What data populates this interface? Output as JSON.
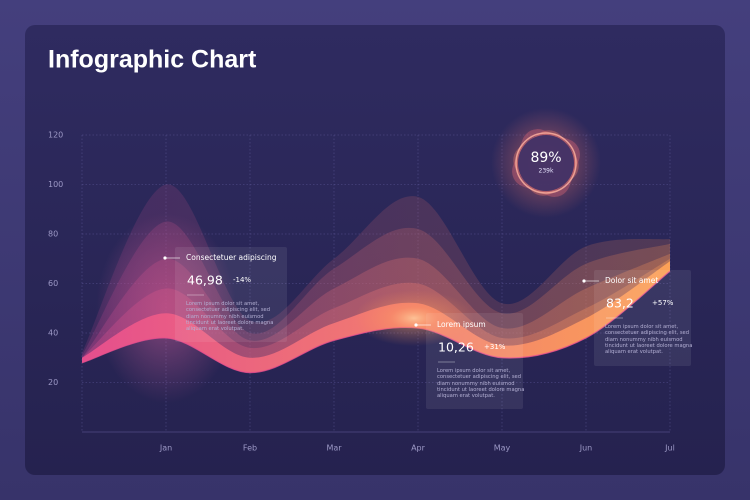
{
  "chart_data": {
    "type": "area",
    "title": "Infographic Chart",
    "categories": [
      null,
      "Jan",
      "Feb",
      "Mar",
      "Apr",
      "May",
      "Jun",
      "Jul"
    ],
    "ylim": [
      0,
      120
    ],
    "yticks": [
      20,
      40,
      60,
      80,
      100,
      120
    ],
    "grid": true,
    "base": {
      "color": "#e94f8e",
      "values": [
        28,
        38,
        24,
        37,
        42,
        30,
        38,
        65
      ]
    },
    "series": [
      {
        "color": "#9c3f86",
        "color_end": "#d77a52",
        "values": [
          32,
          100,
          45,
          70,
          95,
          52,
          75,
          78
        ]
      },
      {
        "color": "#a9418a",
        "color_end": "#e08554",
        "values": [
          31,
          85,
          40,
          66,
          82,
          48,
          68,
          76
        ]
      },
      {
        "color": "#bc468e",
        "color_end": "#ea8e56",
        "values": [
          30,
          70,
          37,
          58,
          70,
          42,
          58,
          72
        ]
      },
      {
        "color": "#cf4a8f",
        "color_end": "#f39858",
        "values": [
          30,
          58,
          34,
          50,
          60,
          38,
          50,
          70
        ]
      },
      {
        "color": "#e94f8e",
        "color_end": "#ffa457",
        "values": [
          30,
          48,
          30,
          44,
          52,
          35,
          46,
          69
        ]
      }
    ],
    "cards": [
      {
        "title": "Consectetuer adipiscing",
        "value": "46,98",
        "change": "-14%",
        "text": "Lorem ipsum dolor sit amet, consectetuer adipiscing elit, sed diam nonummy nibh euismod tincidunt ut laoreet dolore magna aliquam erat volutpat."
      },
      {
        "title": "Lorem ipsum",
        "value": "10,26",
        "change": "+31%",
        "text": "Lorem ipsum dolor sit amet, consectetuer adipiscing elit, sed diam nonummy nibh euismod tincidunt ut laoreet dolore magna aliquam erat volutpat."
      },
      {
        "title": "Dolor sit amet",
        "value": "83,2",
        "change": "+57%",
        "text": "Lorem ipsum dolor sit amet, consectetuer adipiscing elit, sed diam nonummy nibh euismod tincidunt ut laoreet dolore magna aliquam erat volutpat."
      }
    ],
    "badge": {
      "value": "89%",
      "label": "239k"
    }
  }
}
